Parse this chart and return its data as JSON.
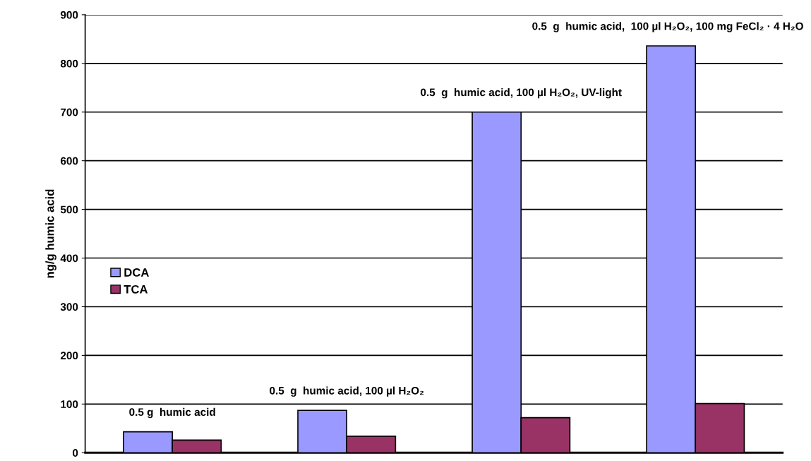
{
  "chart_data": {
    "type": "bar",
    "ylabel": "ng/g humic acid",
    "categories": [
      null,
      null,
      null,
      null
    ],
    "series": [
      {
        "name": "DCA",
        "color": "#9999ff",
        "values": [
          43,
          87,
          700,
          836
        ]
      },
      {
        "name": "TCA",
        "color": "#993366",
        "values": [
          26,
          34,
          72,
          101
        ]
      }
    ],
    "annotations": [
      "0.5 g  humic acid",
      "0.5  g  humic acid, 100 µl H₂O₂",
      "0.5  g  humic acid, 100 µl H₂O₂, UV-light",
      "0.5  g  humic acid,  100 µl H₂O₂, 100 mg FeCl₂ · 4 H₂O"
    ],
    "ylim": [
      0,
      900
    ],
    "yticks": [
      0,
      100,
      200,
      300,
      400,
      500,
      600,
      700,
      800,
      900
    ],
    "grid": "y",
    "legend": "left"
  }
}
